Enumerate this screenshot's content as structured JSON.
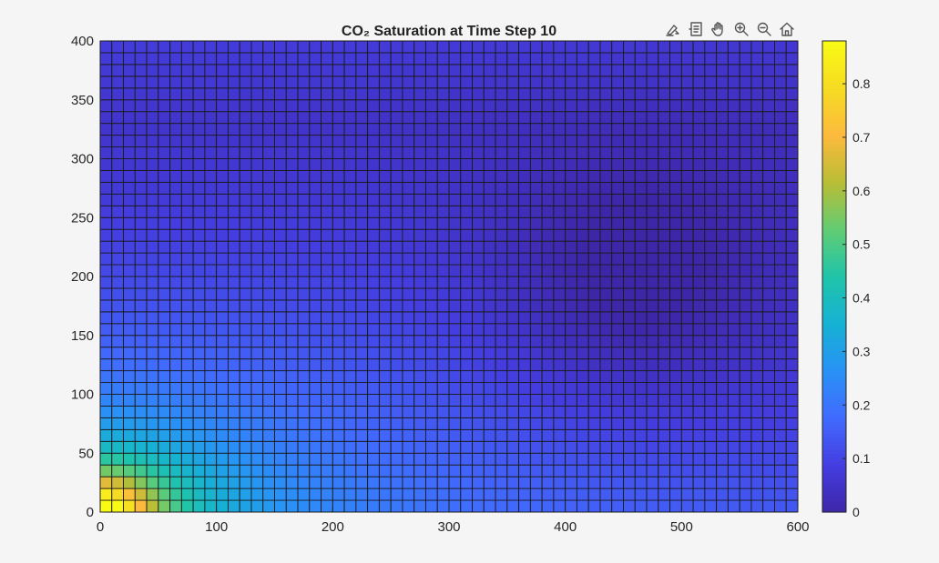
{
  "chart_data": {
    "type": "heatmap",
    "title": "CO₂ Saturation at Time Step 10",
    "xlabel": "",
    "ylabel": "",
    "xlim": [
      0,
      600
    ],
    "ylim": [
      0,
      400
    ],
    "x_ticks": [
      "0",
      "100",
      "200",
      "300",
      "400",
      "500",
      "600"
    ],
    "y_ticks": [
      "0",
      "50",
      "100",
      "150",
      "200",
      "250",
      "300",
      "350",
      "400"
    ],
    "grid_cells": {
      "nx": 60,
      "ny": 40,
      "dx": 10,
      "dy": 10
    },
    "colormap": "parula",
    "colorbar": {
      "clim": [
        0,
        0.88
      ],
      "ticks": [
        "0",
        "0.1",
        "0.2",
        "0.3",
        "0.4",
        "0.5",
        "0.6",
        "0.7",
        "0.8"
      ]
    },
    "field_samples": [
      {
        "x": 5,
        "y": 5,
        "value": 0.88
      },
      {
        "x": 25,
        "y": 15,
        "value": 0.72
      },
      {
        "x": 5,
        "y": 55,
        "value": 0.55
      },
      {
        "x": 55,
        "y": 15,
        "value": 0.5
      },
      {
        "x": 115,
        "y": 25,
        "value": 0.42
      },
      {
        "x": 15,
        "y": 115,
        "value": 0.35
      },
      {
        "x": 205,
        "y": 55,
        "value": 0.25
      },
      {
        "x": 55,
        "y": 195,
        "value": 0.2
      },
      {
        "x": 105,
        "y": 275,
        "value": 0.14
      },
      {
        "x": 305,
        "y": 125,
        "value": 0.14
      },
      {
        "x": 395,
        "y": 25,
        "value": 0.17
      },
      {
        "x": 445,
        "y": 205,
        "value": 0.02
      },
      {
        "x": 575,
        "y": 55,
        "value": 0.02
      },
      {
        "x": 105,
        "y": 395,
        "value": 0.04
      },
      {
        "x": 575,
        "y": 395,
        "value": 0.04
      }
    ]
  },
  "toolbar": {
    "icons": [
      "brush-export-icon",
      "data-tips-icon",
      "pan-hand-icon",
      "zoom-in-icon",
      "zoom-out-icon",
      "home-icon"
    ]
  }
}
